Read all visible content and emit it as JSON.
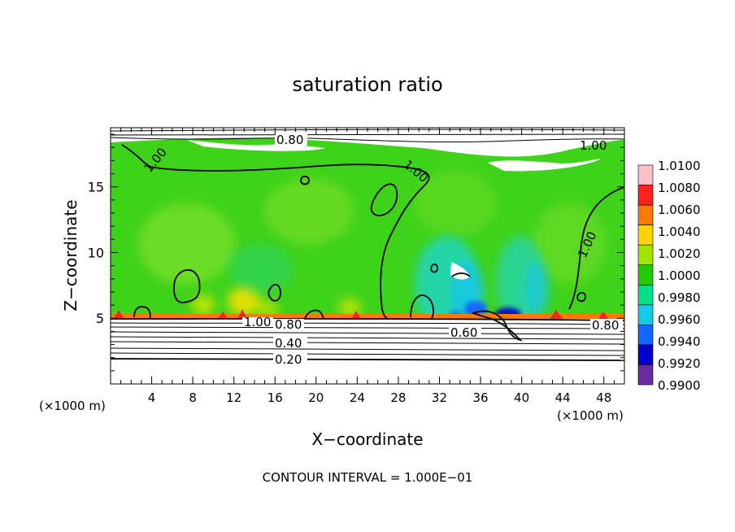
{
  "chart_data": {
    "type": "heatmap",
    "title": "saturation ratio",
    "xlabel": "X−coordinate",
    "ylabel": "Z−coordinate",
    "x_unit_left": "(×1000 m)",
    "x_unit_right": "(×1000 m)",
    "footer": "CONTOUR INTERVAL = 1.000E−01",
    "xlim": [
      0,
      50
    ],
    "ylim": [
      0,
      19.5
    ],
    "x_ticks": [
      "4",
      "8",
      "12",
      "16",
      "20",
      "24",
      "28",
      "32",
      "36",
      "40",
      "44",
      "48"
    ],
    "y_ticks": [
      "5",
      "10",
      "15"
    ],
    "colorbar": {
      "levels": [
        "1.0100",
        "1.0080",
        "1.0060",
        "1.0040",
        "1.0020",
        "1.0000",
        "0.9980",
        "0.9960",
        "0.9940",
        "0.9920",
        "0.9900"
      ],
      "colors": [
        "#ffc0c8",
        "#ff2020",
        "#ff7a00",
        "#ffd400",
        "#9ee600",
        "#22cc00",
        "#00e08a",
        "#18c8e8",
        "#1466ff",
        "#0000cc",
        "#6a2aa0"
      ]
    },
    "contour_labels": [
      "0.80",
      "1.00",
      "1.00",
      "1.00",
      "1.00",
      "1.00",
      "0.80",
      "0.60",
      "0.80",
      "0.40",
      "0.20"
    ],
    "contour_interval": 0.1
  }
}
